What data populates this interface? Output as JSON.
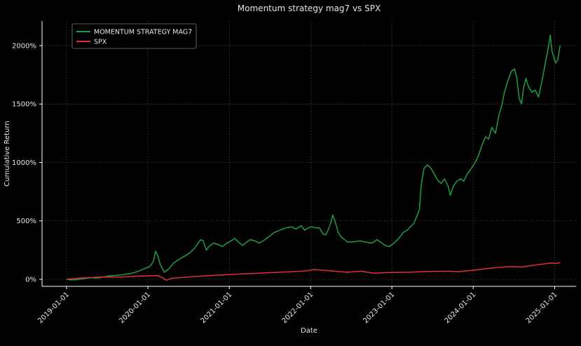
{
  "chart_data": {
    "type": "line",
    "title": "Momentum strategy mag7 vs SPX",
    "xlabel": "Date",
    "ylabel": "Cumulative Return",
    "x_ticks": [
      "2019-01-01",
      "2020-01-01",
      "2021-01-01",
      "2022-01-01",
      "2023-01-01",
      "2024-01-01",
      "2025-01-01"
    ],
    "y_ticks": [
      "0%",
      "500%",
      "1000%",
      "1500%",
      "2000%"
    ],
    "y_tick_values": [
      0,
      500,
      1000,
      1500,
      2000
    ],
    "xlim": [
      "2018-09-13",
      "2025-04-07"
    ],
    "ylim": [
      -60,
      2210
    ],
    "grid": true,
    "legend_position": "top-left",
    "colors": {
      "background": "#000000",
      "grid": "#444444",
      "axis": "#ffffff",
      "text": "#e6e6e6"
    },
    "series": [
      {
        "name": "MOMENTUM STRATEGY MAG7",
        "color": "#1e9e45",
        "points": [
          [
            "2019-01-02",
            0
          ],
          [
            "2019-01-20",
            -5
          ],
          [
            "2019-02-15",
            -3
          ],
          [
            "2019-03-15",
            5
          ],
          [
            "2019-04-20",
            15
          ],
          [
            "2019-05-15",
            10
          ],
          [
            "2019-06-15",
            20
          ],
          [
            "2019-07-15",
            30
          ],
          [
            "2019-08-15",
            35
          ],
          [
            "2019-09-15",
            40
          ],
          [
            "2019-10-15",
            50
          ],
          [
            "2019-11-15",
            65
          ],
          [
            "2019-12-15",
            90
          ],
          [
            "2020-01-10",
            110
          ],
          [
            "2020-01-25",
            150
          ],
          [
            "2020-02-05",
            240
          ],
          [
            "2020-02-15",
            200
          ],
          [
            "2020-02-25",
            130
          ],
          [
            "2020-03-15",
            60
          ],
          [
            "2020-04-05",
            90
          ],
          [
            "2020-04-25",
            140
          ],
          [
            "2020-05-20",
            170
          ],
          [
            "2020-06-15",
            200
          ],
          [
            "2020-07-10",
            230
          ],
          [
            "2020-07-30",
            270
          ],
          [
            "2020-08-10",
            300
          ],
          [
            "2020-08-25",
            340
          ],
          [
            "2020-09-05",
            330
          ],
          [
            "2020-09-20",
            250
          ],
          [
            "2020-10-01",
            280
          ],
          [
            "2020-10-20",
            310
          ],
          [
            "2020-11-10",
            300
          ],
          [
            "2020-12-01",
            280
          ],
          [
            "2020-12-20",
            310
          ],
          [
            "2021-01-10",
            330
          ],
          [
            "2021-01-25",
            350
          ],
          [
            "2021-02-10",
            320
          ],
          [
            "2021-03-01",
            290
          ],
          [
            "2021-03-15",
            310
          ],
          [
            "2021-04-05",
            340
          ],
          [
            "2021-04-25",
            330
          ],
          [
            "2021-05-15",
            310
          ],
          [
            "2021-06-10",
            340
          ],
          [
            "2021-07-01",
            370
          ],
          [
            "2021-07-20",
            400
          ],
          [
            "2021-08-15",
            420
          ],
          [
            "2021-09-10",
            440
          ],
          [
            "2021-10-10",
            450
          ],
          [
            "2021-10-25",
            430
          ],
          [
            "2021-11-05",
            440
          ],
          [
            "2021-11-20",
            460
          ],
          [
            "2021-12-05",
            420
          ],
          [
            "2021-12-20",
            440
          ],
          [
            "2022-01-05",
            450
          ],
          [
            "2022-01-25",
            440
          ],
          [
            "2022-02-10",
            440
          ],
          [
            "2022-02-25",
            390
          ],
          [
            "2022-03-10",
            380
          ],
          [
            "2022-03-20",
            420
          ],
          [
            "2022-04-01",
            480
          ],
          [
            "2022-04-10",
            550
          ],
          [
            "2022-04-20",
            500
          ],
          [
            "2022-05-05",
            400
          ],
          [
            "2022-05-20",
            360
          ],
          [
            "2022-06-15",
            320
          ],
          [
            "2022-07-10",
            320
          ],
          [
            "2022-08-10",
            330
          ],
          [
            "2022-09-01",
            320
          ],
          [
            "2022-10-05",
            310
          ],
          [
            "2022-10-25",
            340
          ],
          [
            "2022-11-10",
            320
          ],
          [
            "2022-12-01",
            290
          ],
          [
            "2022-12-20",
            280
          ],
          [
            "2023-01-10",
            310
          ],
          [
            "2023-02-01",
            350
          ],
          [
            "2023-02-20",
            400
          ],
          [
            "2023-03-10",
            420
          ],
          [
            "2023-03-25",
            450
          ],
          [
            "2023-04-10",
            480
          ],
          [
            "2023-04-25",
            550
          ],
          [
            "2023-05-05",
            600
          ],
          [
            "2023-05-12",
            800
          ],
          [
            "2023-05-25",
            950
          ],
          [
            "2023-06-10",
            980
          ],
          [
            "2023-06-25",
            950
          ],
          [
            "2023-07-10",
            900
          ],
          [
            "2023-07-25",
            850
          ],
          [
            "2023-08-10",
            820
          ],
          [
            "2023-08-25",
            860
          ],
          [
            "2023-09-10",
            800
          ],
          [
            "2023-09-20",
            720
          ],
          [
            "2023-10-05",
            800
          ],
          [
            "2023-10-20",
            840
          ],
          [
            "2023-11-05",
            860
          ],
          [
            "2023-11-20",
            840
          ],
          [
            "2023-12-05",
            900
          ],
          [
            "2023-12-20",
            940
          ],
          [
            "2024-01-10",
            1000
          ],
          [
            "2024-01-25",
            1060
          ],
          [
            "2024-02-10",
            1150
          ],
          [
            "2024-02-25",
            1220
          ],
          [
            "2024-03-10",
            1200
          ],
          [
            "2024-03-25",
            1300
          ],
          [
            "2024-04-10",
            1250
          ],
          [
            "2024-04-25",
            1400
          ],
          [
            "2024-05-10",
            1500
          ],
          [
            "2024-05-20",
            1600
          ],
          [
            "2024-06-05",
            1700
          ],
          [
            "2024-06-20",
            1780
          ],
          [
            "2024-07-05",
            1800
          ],
          [
            "2024-07-15",
            1720
          ],
          [
            "2024-07-25",
            1550
          ],
          [
            "2024-08-05",
            1500
          ],
          [
            "2024-08-15",
            1650
          ],
          [
            "2024-08-25",
            1720
          ],
          [
            "2024-09-05",
            1650
          ],
          [
            "2024-09-20",
            1600
          ],
          [
            "2024-10-05",
            1620
          ],
          [
            "2024-10-20",
            1560
          ],
          [
            "2024-11-05",
            1700
          ],
          [
            "2024-11-20",
            1850
          ],
          [
            "2024-12-05",
            2000
          ],
          [
            "2024-12-12",
            2090
          ],
          [
            "2024-12-20",
            1950
          ],
          [
            "2025-01-05",
            1850
          ],
          [
            "2025-01-15",
            1880
          ],
          [
            "2025-01-25",
            2000
          ]
        ]
      },
      {
        "name": "SPX",
        "color": "#e0303a",
        "points": [
          [
            "2019-01-02",
            0
          ],
          [
            "2019-03-01",
            10
          ],
          [
            "2019-06-01",
            20
          ],
          [
            "2019-09-01",
            20
          ],
          [
            "2019-12-01",
            28
          ],
          [
            "2020-02-15",
            32
          ],
          [
            "2020-03-10",
            10
          ],
          [
            "2020-03-23",
            -8
          ],
          [
            "2020-04-15",
            8
          ],
          [
            "2020-06-15",
            18
          ],
          [
            "2020-09-01",
            28
          ],
          [
            "2020-12-01",
            38
          ],
          [
            "2021-03-01",
            46
          ],
          [
            "2021-06-01",
            54
          ],
          [
            "2021-09-01",
            62
          ],
          [
            "2021-12-15",
            72
          ],
          [
            "2022-01-15",
            84
          ],
          [
            "2022-03-15",
            76
          ],
          [
            "2022-06-15",
            60
          ],
          [
            "2022-08-15",
            70
          ],
          [
            "2022-10-10",
            52
          ],
          [
            "2022-12-15",
            58
          ],
          [
            "2023-03-15",
            60
          ],
          [
            "2023-06-15",
            68
          ],
          [
            "2023-09-15",
            70
          ],
          [
            "2023-10-25",
            65
          ],
          [
            "2024-01-10",
            80
          ],
          [
            "2024-03-15",
            95
          ],
          [
            "2024-06-15",
            110
          ],
          [
            "2024-08-05",
            105
          ],
          [
            "2024-10-15",
            125
          ],
          [
            "2024-12-15",
            140
          ],
          [
            "2025-01-10",
            135
          ],
          [
            "2025-01-25",
            145
          ]
        ]
      }
    ]
  }
}
